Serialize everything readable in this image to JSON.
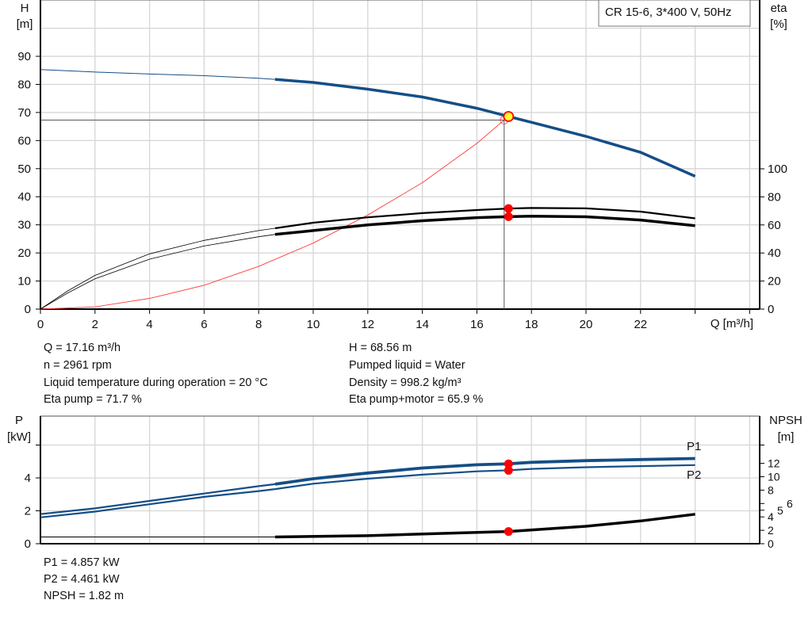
{
  "chart_data": [
    {
      "type": "line",
      "legend_box": "CR 15-6, 3*400 V, 50Hz",
      "xlabel": "Q [m³/h]",
      "ylabel_left": {
        "name": "H",
        "unit": "[m]"
      },
      "ylabel_right": {
        "name": "eta",
        "unit": "[%]"
      },
      "xlim": [
        0,
        26
      ],
      "ylim_left": [
        0,
        100
      ],
      "ylim_right": [
        0,
        200
      ],
      "x_ticks": [
        0,
        2,
        4,
        6,
        8,
        10,
        12,
        14,
        16,
        18,
        20,
        22
      ],
      "x_grid": [
        0,
        2,
        4,
        6,
        8,
        10,
        12,
        14,
        16,
        18,
        20,
        22,
        24,
        26
      ],
      "y_ticks_left": [
        0,
        10,
        20,
        30,
        40,
        50,
        60,
        70,
        80,
        90
      ],
      "y_grid_left": [
        0,
        10,
        20,
        30,
        40,
        50,
        60,
        70,
        80,
        90,
        100
      ],
      "y_ticks_right": [
        0,
        20,
        40,
        60,
        80,
        100
      ],
      "grid": true,
      "thick_from_q": 8.6,
      "colors": {
        "head": "#154e86",
        "eta": "#000000",
        "system": "#ff3b3b",
        "point": "#ff0000",
        "duty": "#ffff33",
        "grid": "#d6d6d6"
      },
      "series": [
        {
          "id": "head",
          "axis": "left",
          "x": [
            0,
            2,
            4,
            6,
            8,
            8.6,
            10,
            12,
            14,
            16,
            17.16,
            18,
            20,
            22,
            24
          ],
          "y": [
            85.3,
            84.4,
            83.7,
            83.1,
            82.2,
            81.8,
            80.7,
            78.3,
            75.5,
            71.5,
            68.56,
            66.5,
            61.5,
            55.8,
            47.3
          ]
        },
        {
          "id": "eta-pump",
          "axis": "right",
          "x": [
            0,
            1,
            2,
            4,
            6,
            8,
            8.6,
            10,
            12,
            14,
            16,
            17.16,
            18,
            20,
            22,
            24
          ],
          "y": [
            0,
            13,
            24,
            39.4,
            49,
            56,
            57.6,
            61.6,
            65.4,
            68.4,
            70.6,
            71.7,
            72.1,
            71.8,
            69.5,
            64.7
          ]
        },
        {
          "id": "eta-pump-motor",
          "axis": "right",
          "x": [
            0,
            1,
            2,
            4,
            6,
            8,
            8.6,
            10,
            12,
            14,
            16,
            17.16,
            18,
            20,
            22,
            24
          ],
          "y": [
            0,
            11.5,
            21.6,
            35.6,
            45,
            51.6,
            53.2,
            56,
            60,
            63,
            65.2,
            65.9,
            66.2,
            65.8,
            63.5,
            59.5
          ]
        },
        {
          "id": "system",
          "axis": "left",
          "x": [
            0,
            2,
            4,
            6,
            8,
            10,
            12,
            14,
            16,
            17
          ],
          "y": [
            0,
            0.8,
            3.8,
            8.5,
            15.2,
            23.5,
            33.5,
            45,
            59,
            67.3
          ]
        }
      ],
      "duty_point": {
        "q": 17.16,
        "h": 68.56
      },
      "requested_point": {
        "q": 17.0,
        "h": 67.3
      },
      "eta_points": [
        71.7,
        65.9
      ]
    },
    {
      "type": "line",
      "ylabel_left": {
        "name": "P",
        "unit": "[kW]"
      },
      "ylabel_right": {
        "name": "NPSH",
        "unit": "[m]"
      },
      "xlim": [
        0,
        26
      ],
      "ylim_left": [
        0,
        7.7
      ],
      "y_ticks_left": [
        0,
        2,
        4
      ],
      "y_grid_left": [
        0,
        2,
        4,
        6
      ],
      "y_ticks_right": [
        0,
        2,
        4,
        5,
        6,
        8,
        10,
        12
      ],
      "grid": true,
      "series": [
        {
          "id": "P1",
          "name": "P1",
          "axis": "left",
          "x": [
            0,
            2,
            4,
            6,
            8,
            8.6,
            10,
            12,
            14,
            16,
            17.16,
            18,
            20,
            22,
            24
          ],
          "y": [
            1.8,
            2.15,
            2.6,
            3.05,
            3.5,
            3.62,
            3.95,
            4.3,
            4.6,
            4.8,
            4.857,
            4.95,
            5.05,
            5.12,
            5.18
          ]
        },
        {
          "id": "P2",
          "name": "P2",
          "axis": "left",
          "x": [
            0,
            2,
            4,
            6,
            8,
            8.6,
            10,
            12,
            14,
            16,
            17.16,
            18,
            20,
            22,
            24
          ],
          "y": [
            1.6,
            1.95,
            2.4,
            2.85,
            3.2,
            3.32,
            3.65,
            3.95,
            4.2,
            4.4,
            4.461,
            4.55,
            4.65,
            4.72,
            4.78
          ]
        },
        {
          "id": "NPSH",
          "axis": "right",
          "x": [
            0,
            4,
            8.6,
            12,
            14,
            17.16,
            20,
            22,
            24
          ],
          "y": [
            1.0,
            1.0,
            1.0,
            1.2,
            1.45,
            1.82,
            2.6,
            3.4,
            4.4
          ]
        }
      ]
    }
  ],
  "info": {
    "left": [
      "Q = 17.16 m³/h",
      "n = 2961 rpm",
      "Liquid temperature during operation = 20 °C",
      "Eta pump = 71.7 %"
    ],
    "right": [
      "H = 68.56 m",
      "Pumped liquid = Water",
      "Density = 998.2 kg/m³",
      "Eta pump+motor = 65.9 %"
    ],
    "bottom": [
      "P1 = 4.857 kW",
      "P2 = 4.461 kW",
      "NPSH = 1.82 m"
    ]
  }
}
